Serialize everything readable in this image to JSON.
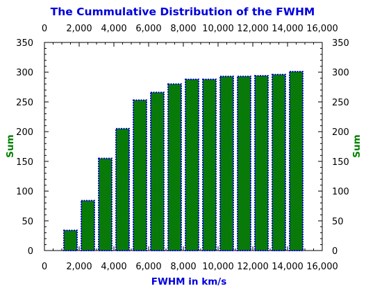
{
  "chart_data": {
    "type": "bar",
    "title": "The Cummulative Distribution of the FWHM",
    "xlabel": "FWHM in km/s",
    "ylabel": "Sum",
    "xlim": [
      0,
      16000
    ],
    "ylim": [
      0,
      350
    ],
    "x_ticks": [
      "0",
      "2,000",
      "4,000",
      "6,000",
      "8,000",
      "10,000",
      "12,000",
      "14,000",
      "16,000"
    ],
    "y_ticks": [
      "0",
      "50",
      "100",
      "150",
      "200",
      "250",
      "300",
      "350"
    ],
    "bin_width": 1000,
    "bar_starts": [
      1000,
      2000,
      3000,
      4000,
      5000,
      6000,
      7000,
      8000,
      9000,
      10000,
      11000,
      12000,
      13000,
      14000
    ],
    "values": [
      34,
      84,
      155,
      205,
      253,
      266,
      280,
      288,
      288,
      293,
      293,
      294,
      296,
      301
    ],
    "grid": false,
    "mirrored_axes": true,
    "colors": {
      "bar_fill": "#008000",
      "bar_edge": "#0000cc",
      "title": "#0000dd",
      "xlabel": "#0000dd",
      "ylabel": "#008000"
    }
  }
}
